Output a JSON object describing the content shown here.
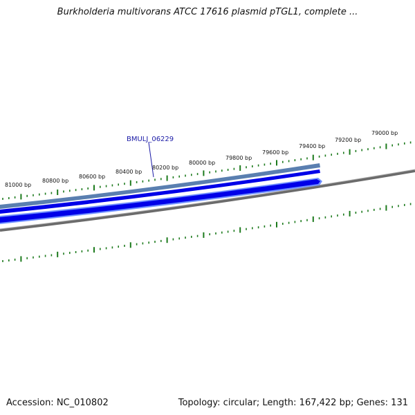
{
  "title": "Burkholderia multivorans ATCC 17616 plasmid pTGL1, complete ...",
  "footer": {
    "accession": "Accession: NC_010802",
    "summary": "Topology: circular; Length: 167,422 bp; Genes: 131"
  },
  "gene": {
    "label": "BMULJ_06229"
  },
  "colors": {
    "tick": "#1c7a1c",
    "backbone": "#6b6b6b",
    "feature_outer": "#3a8ad8",
    "feature_inner": "#0000e8",
    "gene_top": "#5a7fb0",
    "gene_label": "#1a1aa6"
  },
  "ruler": {
    "labels": [
      "81000 bp",
      "80800 bp",
      "80600 bp",
      "80400 bp",
      "80200 bp",
      "80000 bp",
      "79800 bp",
      "79600 bp",
      "79400 bp",
      "79200 bp",
      "79000 bp"
    ]
  }
}
